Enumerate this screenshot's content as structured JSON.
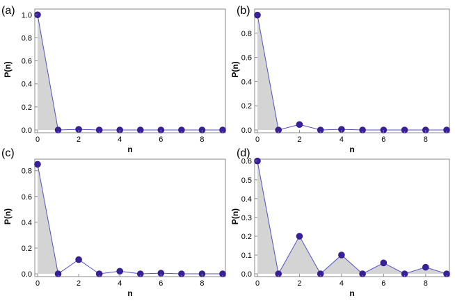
{
  "chart_data": [
    {
      "panel": "(a)",
      "type": "line",
      "xlabel": "n",
      "ylabel": "P(n)",
      "x": [
        0,
        1,
        2,
        3,
        4,
        5,
        6,
        7,
        8,
        9
      ],
      "values": [
        1.0,
        0.0,
        0.005,
        0.0,
        0.0,
        0.0,
        0.0,
        0.0,
        0.0,
        0.0
      ],
      "xlim": [
        0,
        9
      ],
      "ylim": [
        0,
        1.05
      ],
      "xticks": [
        0,
        2,
        4,
        6,
        8
      ],
      "yticks": [
        0.0,
        0.2,
        0.4,
        0.6,
        0.8,
        1.0
      ],
      "ytick_labels": [
        "0.0",
        "0.2",
        "0.4",
        "0.6",
        "0.8",
        "1.0"
      ],
      "filled_region": "x 0 to 1",
      "line_color": "#5050c8",
      "marker_color": "#3a1f9a",
      "fill_color": "#d4d4d4"
    },
    {
      "panel": "(b)",
      "type": "line",
      "xlabel": "n",
      "ylabel": "P(n)",
      "x": [
        0,
        1,
        2,
        3,
        4,
        5,
        6,
        7,
        8,
        9
      ],
      "values": [
        0.95,
        0.0,
        0.045,
        0.0,
        0.005,
        0.0,
        0.0,
        0.0,
        0.0,
        0.0
      ],
      "xlim": [
        0,
        9
      ],
      "ylim": [
        0,
        1.0
      ],
      "xticks": [
        0,
        2,
        4,
        6,
        8
      ],
      "yticks": [
        0.0,
        0.2,
        0.4,
        0.6,
        0.8
      ],
      "ytick_labels": [
        "0.0",
        "0.2",
        "0.4",
        "0.6",
        "0.8"
      ],
      "filled_region": "x 0 to 1",
      "line_color": "#5050c8",
      "marker_color": "#3a1f9a",
      "fill_color": "#d4d4d4"
    },
    {
      "panel": "(c)",
      "type": "line",
      "xlabel": "n",
      "ylabel": "P(n)",
      "x": [
        0,
        1,
        2,
        3,
        4,
        5,
        6,
        7,
        8,
        9
      ],
      "values": [
        0.85,
        0.0,
        0.11,
        0.0,
        0.02,
        0.0,
        0.005,
        0.0,
        0.0,
        0.0
      ],
      "xlim": [
        0,
        9
      ],
      "ylim": [
        0,
        0.89
      ],
      "xticks": [
        0,
        2,
        4,
        6,
        8
      ],
      "yticks": [
        0.0,
        0.2,
        0.4,
        0.6,
        0.8
      ],
      "ytick_labels": [
        "0.0",
        "0.2",
        "0.4",
        "0.6",
        "0.8"
      ],
      "filled_region": "x 0 to 1",
      "line_color": "#5050c8",
      "marker_color": "#3a1f9a",
      "fill_color": "#d4d4d4"
    },
    {
      "panel": "(d)",
      "type": "area",
      "xlabel": "n",
      "ylabel": "P(n)",
      "x": [
        0,
        1,
        2,
        3,
        4,
        5,
        6,
        7,
        8,
        9
      ],
      "values": [
        0.6,
        0.0,
        0.2,
        0.0,
        0.1,
        0.0,
        0.058,
        0.0,
        0.035,
        0.0
      ],
      "xlim": [
        0,
        9
      ],
      "ylim": [
        0,
        0.61
      ],
      "xticks": [
        0,
        2,
        4,
        6,
        8
      ],
      "yticks": [
        0.0,
        0.1,
        0.2,
        0.3,
        0.4,
        0.5,
        0.6
      ],
      "ytick_labels": [
        "0.0",
        "0.1",
        "0.2",
        "0.3",
        "0.4",
        "0.5",
        "0.6"
      ],
      "filled_region": "all",
      "line_color": "#5050c8",
      "marker_color": "#3a1f9a",
      "fill_color": "#d4d4d4"
    }
  ]
}
